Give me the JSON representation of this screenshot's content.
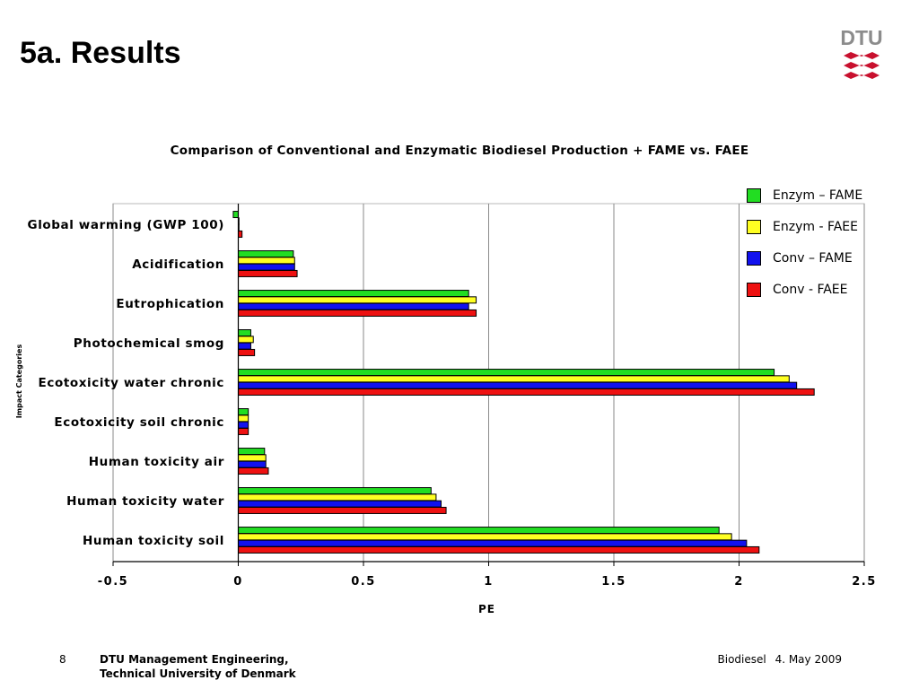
{
  "slide": {
    "title": "5a. Results",
    "logo_text": "DTU",
    "colors": {
      "logo_grey": "#8c8c8c",
      "logo_red": "#c8102e"
    }
  },
  "footer": {
    "page_number": "8",
    "org_line1": "DTU Management Engineering,",
    "org_line2": "Technical University of Denmark",
    "topic": "Biodiesel",
    "date": "4. May 2009"
  },
  "chart_data": {
    "type": "bar",
    "orientation": "horizontal",
    "title": "Comparison of Conventional and Enzymatic Biodiesel Production + FAME vs. FAEE",
    "xlabel": "PE",
    "ylabel": "Impact Categories",
    "xlim": [
      -0.5,
      2.5
    ],
    "xticks": [
      -0.5,
      0,
      0.5,
      1,
      1.5,
      2,
      2.5
    ],
    "xtick_labels": [
      "-0.5",
      "0",
      "0.5",
      "1",
      "1.5",
      "2",
      "2.5"
    ],
    "grid": "vertical",
    "legend_position": "right",
    "categories": [
      "Global warming (GWP 100)",
      "Acidification",
      "Eutrophication",
      "Photochemical smog",
      "Ecotoxicity water chronic",
      "Ecotoxicity soil chronic",
      "Human toxicity air",
      "Human toxicity water",
      "Human toxicity soil"
    ],
    "series": [
      {
        "name": "Enzym – FAME",
        "color": "#22dd22",
        "values": [
          -0.02,
          0.22,
          0.92,
          0.05,
          2.14,
          0.04,
          0.105,
          0.77,
          1.92
        ]
      },
      {
        "name": "Enzym - FAEE",
        "color": "#ffff22",
        "values": [
          0.0,
          0.225,
          0.95,
          0.06,
          2.2,
          0.04,
          0.11,
          0.79,
          1.97
        ]
      },
      {
        "name": "Conv – FAME",
        "color": "#1111ee",
        "values": [
          0.0,
          0.225,
          0.92,
          0.05,
          2.23,
          0.04,
          0.11,
          0.81,
          2.03
        ]
      },
      {
        "name": "Conv - FAEE",
        "color": "#ee1111",
        "values": [
          0.015,
          0.235,
          0.95,
          0.065,
          2.3,
          0.04,
          0.12,
          0.83,
          2.08
        ]
      }
    ]
  }
}
